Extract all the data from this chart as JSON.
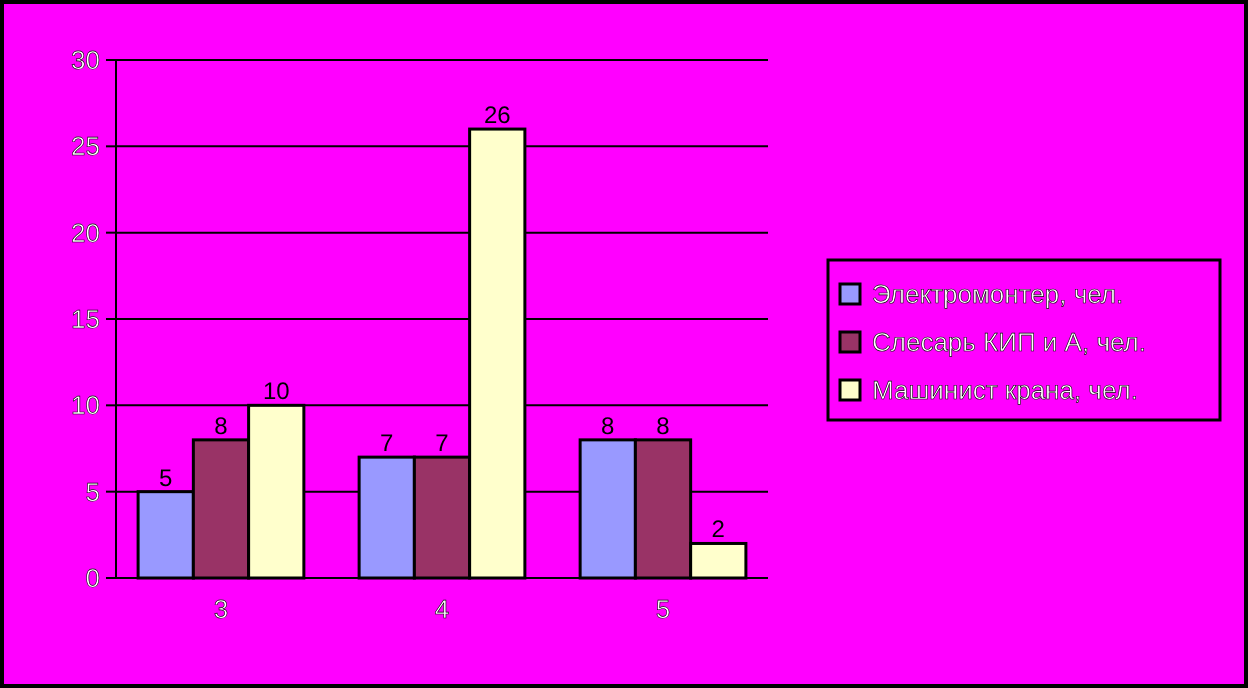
{
  "chart_data": {
    "type": "bar",
    "categories": [
      "3",
      "4",
      "5"
    ],
    "series": [
      {
        "name": "Электромонтер, чел.",
        "color": "#9999ff",
        "values": [
          5,
          7,
          8
        ]
      },
      {
        "name": "Слесарь КИП и А, чел.",
        "color": "#993366",
        "values": [
          8,
          7,
          8
        ]
      },
      {
        "name": "Машинист крана, чел.",
        "color": "#ffffcc",
        "values": [
          10,
          26,
          2
        ]
      }
    ],
    "ylim": [
      0,
      30
    ],
    "yticks": [
      0,
      5,
      10,
      15,
      20,
      25,
      30
    ],
    "grid": "y",
    "legend": "right",
    "data_labels": true
  }
}
